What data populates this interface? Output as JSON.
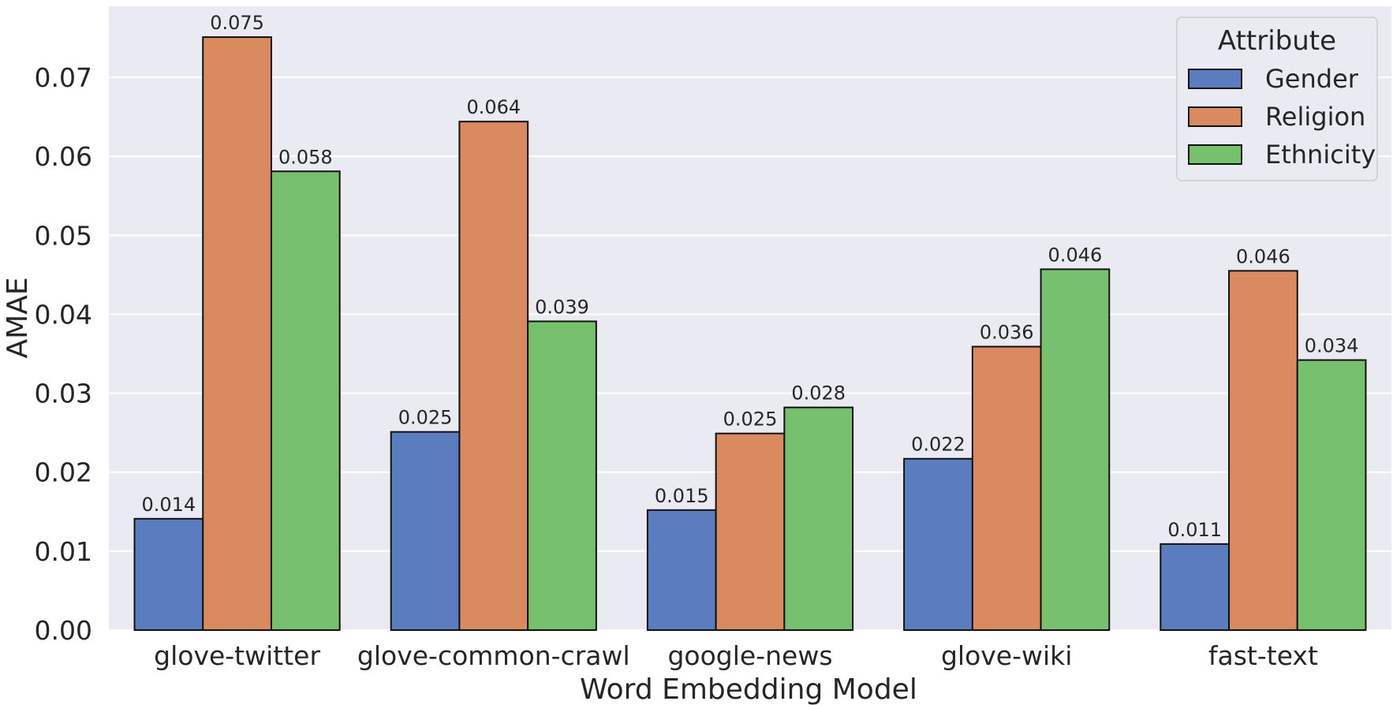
{
  "chart_data": {
    "type": "bar",
    "xlabel": "Word Embedding Model",
    "ylabel": "AMAE",
    "ylim": [
      0,
      0.079
    ],
    "yticks": [
      0.0,
      0.01,
      0.02,
      0.03,
      0.04,
      0.05,
      0.06,
      0.07
    ],
    "ytick_labels": [
      "0.00",
      "0.01",
      "0.02",
      "0.03",
      "0.04",
      "0.05",
      "0.06",
      "0.07"
    ],
    "grid": true,
    "categories": [
      "glove-twitter",
      "glove-common-crawl",
      "google-news",
      "glove-wiki",
      "fast-text"
    ],
    "legend": {
      "title": "Attribute",
      "position": "top-right"
    },
    "series": [
      {
        "name": "Gender",
        "color": "#5b7dc0",
        "values": [
          0.0141,
          0.0251,
          0.0152,
          0.0217,
          0.0109
        ],
        "labels": [
          "0.014",
          "0.025",
          "0.015",
          "0.022",
          "0.011"
        ]
      },
      {
        "name": "Religion",
        "color": "#d98b5f",
        "values": [
          0.0751,
          0.0644,
          0.0249,
          0.0359,
          0.0455
        ],
        "labels": [
          "0.075",
          "0.064",
          "0.025",
          "0.036",
          "0.046"
        ]
      },
      {
        "name": "Ethnicity",
        "color": "#76c06e",
        "values": [
          0.0581,
          0.0391,
          0.0282,
          0.0457,
          0.0342
        ],
        "labels": [
          "0.058",
          "0.039",
          "0.028",
          "0.046",
          "0.034"
        ]
      }
    ]
  }
}
